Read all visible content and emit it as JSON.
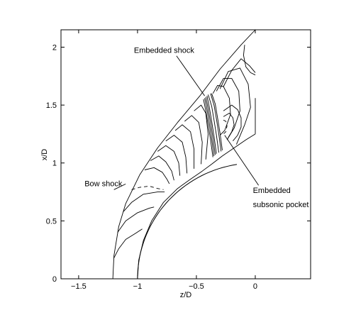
{
  "chart_data": {
    "type": "line",
    "title": "",
    "xlabel": "z/D",
    "ylabel": "x/D",
    "xlim": [
      -1.65,
      0.47
    ],
    "ylim": [
      0,
      2.15
    ],
    "x_ticks": [
      -1.5,
      -1,
      -0.5,
      0
    ],
    "x_tick_labels": [
      "−1.5",
      "−1",
      "−0.5",
      "0"
    ],
    "y_ticks": [
      0,
      0.5,
      1,
      1.5,
      2
    ],
    "y_tick_labels": [
      "0",
      "0.5",
      "1",
      "1.5",
      "2"
    ],
    "grid": false,
    "legend": "none",
    "body_radius": 1.0,
    "series": [
      {
        "style": "solid",
        "x": [
          -1.21,
          -1.2,
          -1.16,
          -1.1,
          -0.98,
          -0.83,
          -0.66,
          -0.47,
          -0.3,
          -0.12,
          0.0
        ],
        "y": [
          0.0,
          0.2,
          0.45,
          0.65,
          0.9,
          1.13,
          1.35,
          1.58,
          1.81,
          2.02,
          2.15
        ]
      },
      {
        "style": "solid",
        "x": [
          -1.0,
          -0.99,
          -0.95,
          -0.88,
          -0.78,
          -0.66,
          -0.55,
          -0.45,
          -0.37
        ],
        "y": [
          0.0,
          0.16,
          0.33,
          0.5,
          0.66,
          0.78,
          0.86,
          0.93,
          0.99
        ]
      },
      {
        "style": "solid",
        "x": [
          -0.37,
          -0.28,
          -0.18,
          -0.08,
          0.0
        ],
        "y": [
          0.99,
          1.06,
          1.13,
          1.2,
          1.25
        ]
      },
      {
        "style": "solid",
        "x": [
          0.0,
          0.0
        ],
        "y": [
          1.25,
          1.56
        ]
      },
      {
        "style": "solid",
        "x": [
          -1.2,
          -1.16,
          -1.1,
          -1.02,
          -0.96
        ],
        "y": [
          0.18,
          0.26,
          0.34,
          0.39,
          0.43
        ]
      },
      {
        "style": "solid",
        "x": [
          -1.17,
          -1.1,
          -1.0,
          -0.9,
          -0.86
        ],
        "y": [
          0.4,
          0.5,
          0.57,
          0.61,
          0.62
        ]
      },
      {
        "style": "solid",
        "x": [
          -1.12,
          -1.05,
          -0.95,
          -0.83,
          -0.77
        ],
        "y": [
          0.58,
          0.66,
          0.73,
          0.75,
          0.75
        ]
      },
      {
        "style": "dashed",
        "x": [
          -1.05,
          -0.98,
          -0.9,
          -0.83,
          -0.78
        ],
        "y": [
          0.77,
          0.79,
          0.8,
          0.78,
          0.77
        ]
      },
      {
        "style": "solid",
        "x": [
          -0.94,
          -0.86,
          -0.79,
          -0.75,
          -0.73
        ],
        "y": [
          0.94,
          0.96,
          0.92,
          0.86,
          0.82
        ]
      },
      {
        "style": "solid",
        "x": [
          -0.89,
          -0.82,
          -0.76,
          -0.71,
          -0.69
        ],
        "y": [
          1.02,
          1.06,
          1.01,
          0.93,
          0.85
        ]
      },
      {
        "style": "solid",
        "x": [
          -0.83,
          -0.76,
          -0.69,
          -0.65,
          -0.64
        ],
        "y": [
          1.1,
          1.15,
          1.1,
          1.0,
          0.89
        ]
      },
      {
        "style": "solid",
        "x": [
          -0.76,
          -0.69,
          -0.62,
          -0.59,
          -0.58
        ],
        "y": [
          1.19,
          1.24,
          1.18,
          1.05,
          0.91
        ]
      },
      {
        "style": "solid",
        "x": [
          -0.68,
          -0.62,
          -0.55,
          -0.52,
          -0.52
        ],
        "y": [
          1.28,
          1.33,
          1.27,
          1.12,
          0.95
        ]
      },
      {
        "style": "solid",
        "x": [
          -0.6,
          -0.54,
          -0.48,
          -0.45,
          -0.46
        ],
        "y": [
          1.36,
          1.41,
          1.35,
          1.18,
          0.99
        ]
      },
      {
        "style": "solid",
        "x": [
          -0.52,
          -0.46,
          -0.42,
          -0.4,
          -0.42
        ],
        "y": [
          1.45,
          1.5,
          1.43,
          1.25,
          1.03
        ]
      },
      {
        "style": "solid",
        "x": [
          -0.44,
          -0.42,
          -0.4,
          -0.38,
          -0.36
        ],
        "y": [
          1.55,
          1.45,
          1.33,
          1.2,
          1.05
        ]
      },
      {
        "style": "solid",
        "x": [
          -0.43,
          -0.41,
          -0.39,
          -0.37,
          -0.35
        ],
        "y": [
          1.56,
          1.46,
          1.34,
          1.21,
          1.06
        ]
      },
      {
        "style": "solid",
        "x": [
          -0.42,
          -0.4,
          -0.38,
          -0.36,
          -0.34
        ],
        "y": [
          1.57,
          1.47,
          1.35,
          1.22,
          1.07
        ]
      },
      {
        "style": "solid",
        "x": [
          -0.41,
          -0.39,
          -0.37,
          -0.35,
          -0.33
        ],
        "y": [
          1.58,
          1.48,
          1.36,
          1.23,
          1.08
        ]
      },
      {
        "style": "solid",
        "x": [
          -0.4,
          -0.37,
          -0.35,
          -0.33,
          -0.31
        ],
        "y": [
          1.59,
          1.49,
          1.37,
          1.24,
          1.09
        ]
      },
      {
        "style": "solid",
        "x": [
          -0.38,
          -0.35,
          -0.33,
          -0.31,
          -0.29
        ],
        "y": [
          1.6,
          1.5,
          1.38,
          1.25,
          1.1
        ]
      },
      {
        "style": "solid",
        "x": [
          -0.37,
          -0.34,
          -0.32,
          -0.3,
          -0.28
        ],
        "y": [
          1.6,
          1.51,
          1.39,
          1.26,
          1.11
        ]
      },
      {
        "style": "solid",
        "x": [
          -0.36,
          -0.32,
          -0.27,
          -0.22,
          -0.21,
          -0.26,
          -0.3
        ],
        "y": [
          1.6,
          1.67,
          1.66,
          1.56,
          1.42,
          1.28,
          1.24
        ]
      },
      {
        "style": "solid",
        "x": [
          -0.33,
          -0.27,
          -0.2,
          -0.14,
          -0.13,
          -0.18,
          -0.24
        ],
        "y": [
          1.62,
          1.73,
          1.73,
          1.62,
          1.45,
          1.3,
          1.2
        ]
      },
      {
        "style": "solid",
        "x": [
          -0.3,
          -0.23,
          -0.13,
          -0.06,
          -0.04,
          -0.09,
          -0.16
        ],
        "y": [
          1.64,
          1.79,
          1.82,
          1.68,
          1.48,
          1.33,
          1.16
        ]
      },
      {
        "style": "solid",
        "x": [
          -0.27,
          -0.2,
          -0.12,
          -0.05,
          0.0
        ],
        "y": [
          1.66,
          1.8,
          1.9,
          1.84,
          1.78
        ]
      },
      {
        "style": "solid",
        "x": [
          -0.09,
          -0.1,
          -0.08,
          -0.04,
          0.0
        ],
        "y": [
          2.02,
          1.93,
          1.83,
          1.78,
          1.76
        ]
      },
      {
        "style": "solid",
        "x": [
          -0.27,
          -0.2,
          -0.15,
          -0.12,
          -0.12,
          -0.15,
          -0.19
        ],
        "y": [
          1.45,
          1.5,
          1.46,
          1.39,
          1.31,
          1.24,
          1.19
        ]
      },
      {
        "style": "solid",
        "x": [
          -0.27,
          -0.22,
          -0.19,
          -0.18,
          -0.2,
          -0.23
        ],
        "y": [
          1.4,
          1.43,
          1.39,
          1.33,
          1.27,
          1.22
        ]
      },
      {
        "style": "dashed",
        "x": [
          -0.27,
          -0.25,
          -0.24,
          -0.25,
          -0.27
        ],
        "y": [
          1.37,
          1.36,
          1.32,
          1.27,
          1.25
        ]
      }
    ],
    "annotations": [
      {
        "label": "Embedded shock",
        "text_x": -1.03,
        "text_y": 1.95,
        "target_x": -0.43,
        "target_y": 1.58
      },
      {
        "label": "Bow shock",
        "text_x": -1.45,
        "text_y": 0.8,
        "target_x": -1.2,
        "target_y": 0.77
      },
      {
        "label": "Embedded",
        "text_x": -0.02,
        "text_y": 0.74,
        "target_x": -0.26,
        "target_y": 1.24
      },
      {
        "label": "subsonic pocket",
        "text_x": -0.02,
        "text_y": 0.62
      }
    ]
  }
}
